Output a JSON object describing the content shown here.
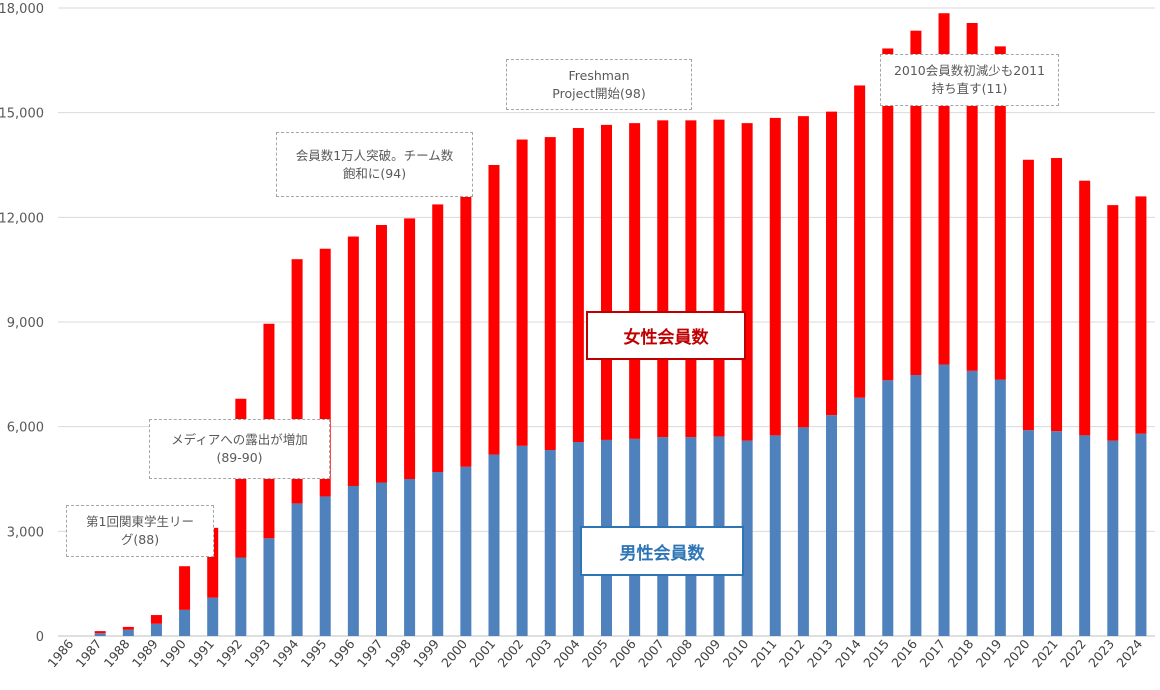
{
  "chart_data": {
    "type": "bar",
    "stacked": true,
    "categories": [
      "1986",
      "1987",
      "1988",
      "1989",
      "1990",
      "1991",
      "1992",
      "1993",
      "1994",
      "1995",
      "1996",
      "1997",
      "1998",
      "1999",
      "2000",
      "2001",
      "2002",
      "2003",
      "2004",
      "2005",
      "2006",
      "2007",
      "2008",
      "2009",
      "2010",
      "2011",
      "2012",
      "2013",
      "2014",
      "2015",
      "2016",
      "2017",
      "2018",
      "2019",
      "2020",
      "2021",
      "2022",
      "2023",
      "2024"
    ],
    "series": [
      {
        "name": "男性会員数",
        "color": "#4f81bd",
        "values": [
          0,
          80,
          180,
          350,
          750,
          1100,
          2250,
          2800,
          3800,
          4000,
          4300,
          4400,
          4500,
          4700,
          4850,
          5200,
          5450,
          5330,
          5560,
          5620,
          5650,
          5700,
          5700,
          5720,
          5600,
          5750,
          5980,
          6330,
          6830,
          7330,
          7480,
          7780,
          7600,
          7350,
          5900,
          5870,
          5750,
          5600,
          5800
        ]
      },
      {
        "name": "女性会員数",
        "color": "#ff0000",
        "values": [
          0,
          60,
          80,
          250,
          1250,
          2000,
          4550,
          6150,
          7000,
          7100,
          7150,
          7380,
          7470,
          7670,
          7770,
          8300,
          8780,
          8970,
          9000,
          9030,
          9050,
          9080,
          9080,
          9080,
          9100,
          9100,
          8920,
          8700,
          8950,
          9510,
          9870,
          10070,
          9970,
          9550,
          7750,
          7830,
          7300,
          6750,
          6800
        ]
      }
    ],
    "ylim": [
      0,
      18000
    ],
    "yticks": [
      "0",
      "3,000",
      "6,000",
      "9,000",
      "12,000",
      "15,000",
      "18,000"
    ],
    "grid": true
  },
  "annotations": [
    {
      "text": "第1回関東学生リー\nグ(88)"
    },
    {
      "text": "メディアへの露出が増加\n(89-90)"
    },
    {
      "text": "会員数1万人突破。チーム数\n飽和に(94)"
    },
    {
      "text": "Freshman\nProject開始(98)"
    },
    {
      "text": "2010会員数初減少も2011\n持ち直す(11)"
    }
  ],
  "labels": {
    "female": "女性会員数",
    "male": "男性会員数"
  }
}
